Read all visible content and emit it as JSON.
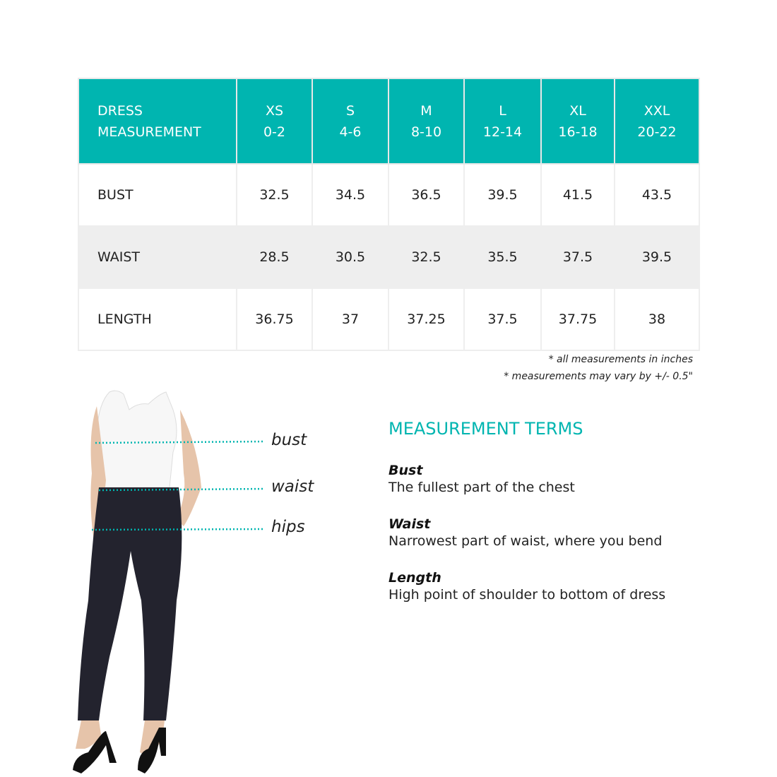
{
  "table": {
    "header": {
      "label_line1": "DRESS",
      "label_line2": "MEASUREMENT",
      "sizes": [
        {
          "size": "XS",
          "range": "0-2"
        },
        {
          "size": "S",
          "range": "4-6"
        },
        {
          "size": "M",
          "range": "8-10"
        },
        {
          "size": "L",
          "range": "12-14"
        },
        {
          "size": "XL",
          "range": "16-18"
        },
        {
          "size": "XXL",
          "range": "20-22"
        }
      ]
    },
    "rows": [
      {
        "label": "BUST",
        "values": [
          "32.5",
          "34.5",
          "36.5",
          "39.5",
          "41.5",
          "43.5"
        ]
      },
      {
        "label": "WAIST",
        "values": [
          "28.5",
          "30.5",
          "32.5",
          "35.5",
          "37.5",
          "39.5"
        ]
      },
      {
        "label": "LENGTH",
        "values": [
          "36.75",
          "37",
          "37.25",
          "37.5",
          "37.75",
          "38"
        ]
      }
    ]
  },
  "notes": [
    "* all measurements in inches",
    "* measurements may vary by +/- 0.5\""
  ],
  "figure_labels": [
    "bust",
    "waist",
    "hips"
  ],
  "terms": {
    "title": "MEASUREMENT TERMS",
    "items": [
      {
        "term": "Bust",
        "definition": "The fullest part of the chest"
      },
      {
        "term": "Waist",
        "definition": "Narrowest part of waist, where you bend"
      },
      {
        "term": "Length",
        "definition": "High point of shoulder to bottom of dress"
      }
    ]
  },
  "colors": {
    "accent": "#00b5b0",
    "stripe": "#eeeeee"
  }
}
